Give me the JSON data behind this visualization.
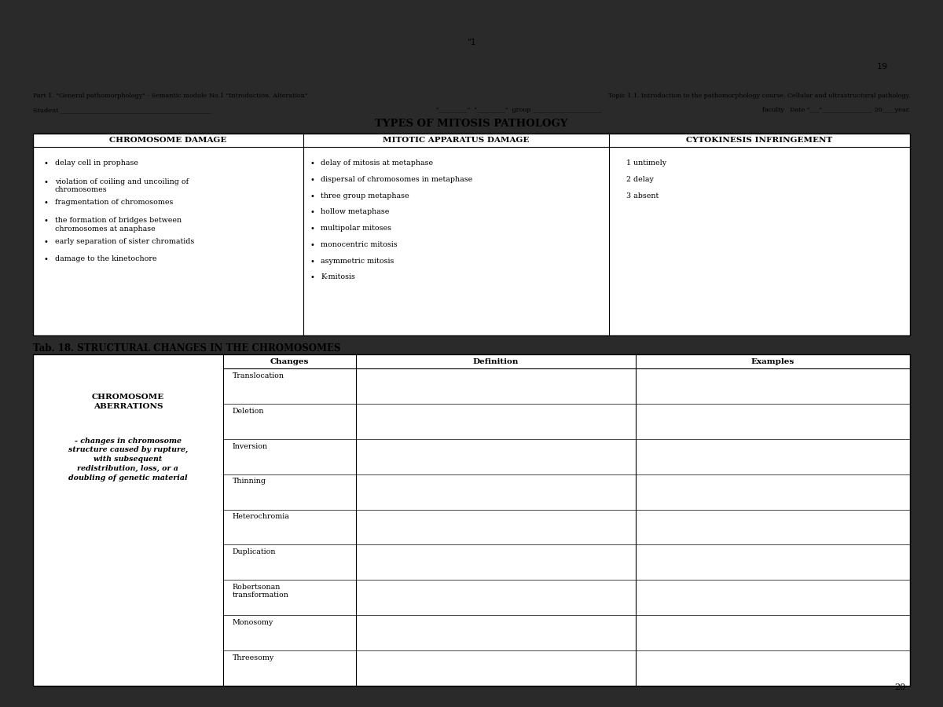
{
  "bg_color": "#ffffff",
  "dark_bg": "#2a2a2a",
  "light_gray": "#e8e8e8",
  "header_line1_left": "Part 1. \"General pathomorphology\" - Semantic module No.1 \"Introduction. Alteration\"",
  "header_line1_right": "Topic 1.1. Introduction to the pathomorphology course. Cellular and ultrastructural pathology.",
  "header_line2_left": "Student",
  "header_line2_mid": "\"            \"  \"             \" group",
  "header_line2_right": "faculty   Date \"___\"_______________ 20____year.",
  "main_title": "TYPES OF MITOSIS PATHOLOGY",
  "col1_header": "CHROMOSOME DAMAGE",
  "col2_header": "MITOTIC APPARATUS DAMAGE",
  "col3_header": "CYTOKINESIS INFRINGEMENT",
  "col1_items": [
    "delay cell in prophase",
    "violation of coiling and uncoiling of\nchromosomes",
    "fragmentation of chromosomes",
    "the formation of bridges between\nchromosomes at anaphase",
    "early separation of sister chromatids",
    "damage to the kinetochore"
  ],
  "col2_items": [
    "delay of mitosis at metaphase",
    "dispersal of chromosomes in metaphase",
    "three group metaphase",
    "hollow metaphase",
    "multipolar mitoses",
    "monocentric mitosis",
    "asymmetric mitosis",
    "K-mitosis"
  ],
  "col3_items": [
    "1 untimely",
    "2 delay",
    "3 absent"
  ],
  "tab18_title": "Tab. 18. STRUCTURAL CHANGES IN THE CHROMOSOMES",
  "tab18_left_bold": "CHROMOSOME\nABERRATIONS",
  "tab18_left_italic_bold": "- changes in chromosome\nstructure caused by rupture,\nwith subsequent\nredistribution, loss, or a\ndoubling of genetic material",
  "tab18_col_headers": [
    "Changes",
    "Definition",
    "Examples"
  ],
  "tab18_changes": [
    "Translocation",
    "Deletion",
    "Inversion",
    "Thinning",
    "Heterochromia",
    "Duplication",
    "Robertsonan\ntransformation",
    "Monosomy",
    "Threesomy"
  ],
  "page_num_top": "19",
  "page_num_bottom": "20"
}
